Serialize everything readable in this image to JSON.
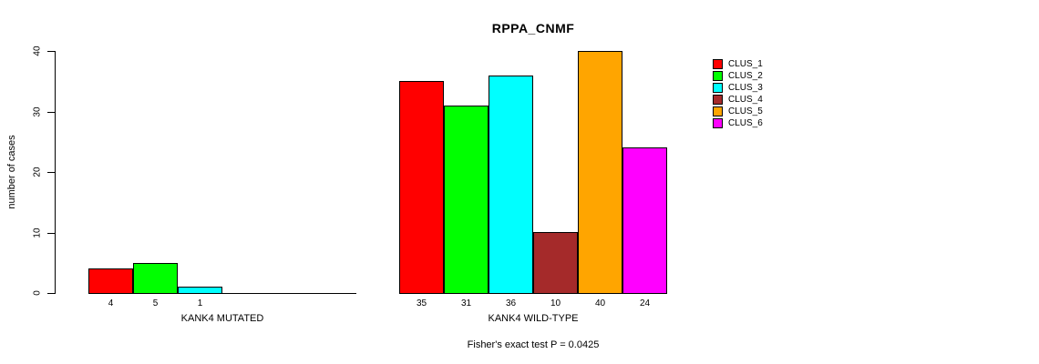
{
  "chart_data": {
    "type": "bar",
    "title": "RPPA_CNMF",
    "ylabel": "number of cases",
    "xlabel": "",
    "ylim": [
      0,
      40
    ],
    "yticks": [
      0,
      10,
      20,
      30,
      40
    ],
    "grid": false,
    "legend_position": "right",
    "categories": [
      "KANK4 MUTATED",
      "KANK4 WILD-TYPE"
    ],
    "series": [
      {
        "name": "CLUS_1",
        "color": "#ff0000",
        "values": [
          4,
          35
        ]
      },
      {
        "name": "CLUS_2",
        "color": "#00ff00",
        "values": [
          5,
          31
        ]
      },
      {
        "name": "CLUS_3",
        "color": "#00ffff",
        "values": [
          1,
          36
        ]
      },
      {
        "name": "CLUS_4",
        "color": "#a52a2a",
        "values": [
          0,
          10
        ]
      },
      {
        "name": "CLUS_5",
        "color": "#ffa500",
        "values": [
          0,
          40
        ]
      },
      {
        "name": "CLUS_6",
        "color": "#ff00ff",
        "values": [
          0,
          24
        ]
      }
    ],
    "bar_value_labels": {
      "KANK4 MUTATED": [
        4,
        5,
        1
      ],
      "KANK4 WILD-TYPE": [
        35,
        31,
        36,
        10,
        40,
        24
      ]
    },
    "caption": "Fisher's exact test P = 0.0425",
    "axis_color": "#000000",
    "bar_border_color": "#000000"
  }
}
